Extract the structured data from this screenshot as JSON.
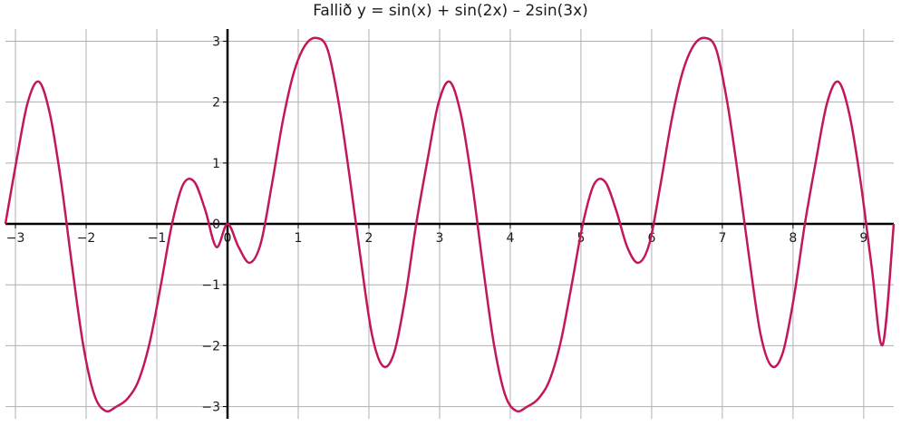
{
  "chart_data": {
    "type": "line",
    "title": "Fallið y = sin(x) + sin(2x) – 2sin(3x)",
    "xlabel": "",
    "ylabel": "",
    "xlim": [
      -3.14159,
      9.42478
    ],
    "ylim": [
      -3.2,
      3.2
    ],
    "grid": true,
    "x_ticks": [
      -3,
      -2,
      -1,
      0,
      1,
      2,
      3,
      4,
      5,
      6,
      7,
      8,
      9
    ],
    "x_tick_labels": [
      "−3",
      "−2",
      "−1",
      "0",
      "1",
      "2",
      "3",
      "4",
      "5",
      "6",
      "7",
      "8",
      "9"
    ],
    "y_ticks": [
      -3,
      -2,
      -1,
      0,
      1,
      2,
      3
    ],
    "y_tick_labels": [
      "−3",
      "−2",
      "−1",
      "0",
      "1",
      "2",
      "3"
    ],
    "series": [
      {
        "color": "#c2185b",
        "x": [
          -3.142,
          -2.985,
          -2.828,
          -2.67,
          -2.513,
          -2.356,
          -2.199,
          -2.042,
          -1.885,
          -1.728,
          -1.571,
          -1.414,
          -1.257,
          -1.1,
          -0.942,
          -0.785,
          -0.628,
          -0.471,
          -0.314,
          -0.157,
          0.0,
          0.157,
          0.314,
          0.471,
          0.628,
          0.785,
          0.942,
          1.1,
          1.257,
          1.414,
          1.571,
          1.728,
          1.885,
          2.042,
          2.199,
          2.356,
          2.513,
          2.67,
          2.828,
          2.985,
          3.142,
          3.299,
          3.456,
          3.613,
          3.77,
          3.927,
          4.084,
          4.241,
          4.398,
          4.555,
          4.712,
          4.869,
          5.027,
          5.184,
          5.341,
          5.498,
          5.655,
          5.812,
          5.969,
          6.126,
          6.283,
          6.44,
          6.597,
          6.754,
          6.912,
          7.069,
          7.226,
          7.383,
          7.54,
          7.697,
          7.854,
          8.011,
          8.168,
          8.325,
          8.482,
          8.639,
          8.796,
          8.954,
          9.111,
          9.268,
          9.425
        ],
        "y": [
          0.0,
          1.041,
          1.987,
          2.335,
          1.808,
          0.707,
          -0.691,
          -1.985,
          -2.806,
          -3.071,
          -3.0,
          -2.869,
          -2.568,
          -1.945,
          -0.998,
          0.0,
          0.647,
          0.693,
          0.224,
          -0.381,
          0.0,
          -0.381,
          -0.639,
          -0.317,
          0.648,
          1.707,
          2.5,
          2.934,
          3.053,
          2.869,
          2.0,
          0.771,
          -0.582,
          -1.808,
          -2.335,
          -2.121,
          -1.216,
          0.005,
          1.042,
          1.987,
          2.334,
          1.809,
          0.706,
          -0.691,
          -1.985,
          -2.807,
          -3.071,
          -3.0,
          -2.869,
          -2.568,
          -1.946,
          -0.999,
          0.0,
          0.647,
          0.693,
          0.224,
          -0.381,
          -0.639,
          -0.317,
          0.648,
          1.707,
          2.5,
          2.934,
          3.053,
          2.869,
          2.0,
          0.771,
          -0.582,
          -1.808,
          -2.335,
          -2.121,
          -1.216,
          0.004,
          1.041,
          1.987,
          2.334,
          1.809,
          0.708,
          -0.693,
          -1.985,
          0.0
        ]
      }
    ]
  }
}
